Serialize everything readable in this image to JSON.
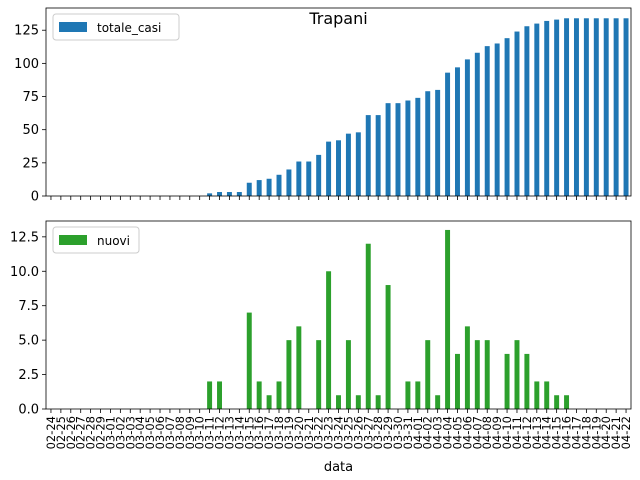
{
  "chart_data": [
    {
      "type": "bar",
      "title": "Trapani",
      "xlabel": "",
      "ylabel": "",
      "ylim": [
        0,
        141.75
      ],
      "yticks": [
        0,
        25,
        50,
        75,
        100,
        125
      ],
      "grid": false,
      "legend_position": "upper left",
      "series": [
        {
          "name": "totale_casi",
          "color": "#1f77b4",
          "values": [
            0,
            0,
            0,
            0,
            0,
            0,
            0,
            0,
            0,
            0,
            0,
            0,
            0,
            0,
            0,
            0,
            2,
            3,
            3,
            3,
            10,
            12,
            13,
            16,
            20,
            26,
            26,
            31,
            41,
            42,
            47,
            48,
            61,
            61,
            70,
            70,
            72,
            74,
            79,
            80,
            93,
            97,
            103,
            108,
            113,
            115,
            119,
            124,
            128,
            130,
            132,
            133,
            134,
            134,
            134,
            134,
            134,
            134,
            134
          ]
        }
      ]
    },
    {
      "type": "bar",
      "title": "",
      "xlabel": "data",
      "ylabel": "",
      "ylim": [
        0,
        13.65
      ],
      "yticks": [
        "0.0",
        "2.5",
        "5.0",
        "7.5",
        "10.0",
        "12.5"
      ],
      "grid": false,
      "legend_position": "upper left",
      "series": [
        {
          "name": "nuovi",
          "color": "#2ca02c",
          "values": [
            0,
            0,
            0,
            0,
            0,
            0,
            0,
            0,
            0,
            0,
            0,
            0,
            0,
            0,
            0,
            0,
            2,
            2,
            0,
            0,
            7,
            2,
            1,
            2,
            5,
            6,
            0,
            5,
            10,
            1,
            5,
            1,
            12,
            1,
            9,
            0,
            2,
            2,
            5,
            1,
            13,
            4,
            6,
            5,
            5,
            0,
            4,
            5,
            4,
            2,
            2,
            1,
            1,
            0,
            0,
            0,
            0,
            0,
            0
          ]
        }
      ]
    }
  ],
  "x_categories": [
    "02-24",
    "02-25",
    "02-26",
    "02-27",
    "02-28",
    "02-29",
    "03-01",
    "03-02",
    "03-03",
    "03-04",
    "03-05",
    "03-06",
    "03-07",
    "03-08",
    "03-09",
    "03-10",
    "03-11",
    "03-12",
    "03-13",
    "03-14",
    "03-15",
    "03-16",
    "03-17",
    "03-18",
    "03-19",
    "03-20",
    "03-21",
    "03-22",
    "03-23",
    "03-24",
    "03-25",
    "03-26",
    "03-27",
    "03-28",
    "03-29",
    "03-30",
    "03-31",
    "04-01",
    "04-02",
    "04-03",
    "04-04",
    "04-05",
    "04-06",
    "04-07",
    "04-08",
    "04-09",
    "04-10",
    "04-11",
    "04-12",
    "04-13",
    "04-14",
    "04-15",
    "04-16",
    "04-17",
    "04-18",
    "04-19",
    "04-20",
    "04-21",
    "04-22"
  ]
}
